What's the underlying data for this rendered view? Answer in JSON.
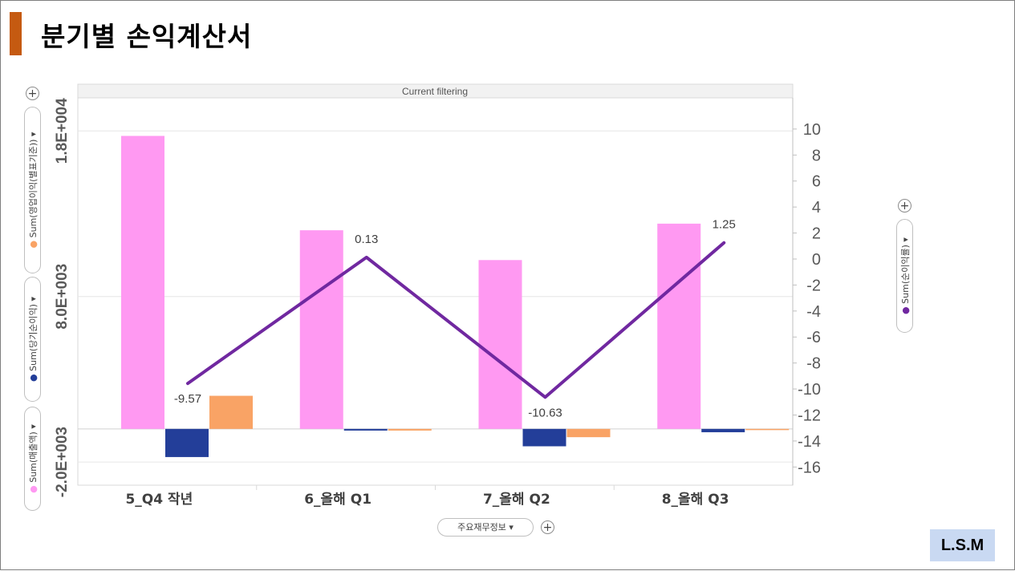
{
  "page": {
    "title": "분기별 손익계산서",
    "logo_text": "L.S.M"
  },
  "controls": {
    "filter_label": "Current filtering",
    "x_axis_selector": "주요재무정보",
    "left_axis_pills": [
      "Sum(영업이익(별표기준))",
      "Sum(당기순이익)",
      "Sum(매출액)"
    ],
    "right_axis_pill": "Sum(순이익률)",
    "dropdown_glyph": "▾",
    "plus_glyph": "+"
  },
  "chart_data": {
    "type": "bar",
    "categories": [
      "5_Q4 작년",
      "6_올해 Q1",
      "7_올해 Q2",
      "8_올해 Q3"
    ],
    "series": [
      {
        "name": "Sum(매출액)",
        "axis": "left",
        "kind": "bar",
        "color": "#ff99f2",
        "values": [
          17700,
          12000,
          10200,
          12400
        ]
      },
      {
        "name": "Sum(당기순이익)",
        "axis": "left",
        "kind": "bar",
        "color": "#233e99",
        "values": [
          -1700,
          -100,
          -1050,
          -200
        ]
      },
      {
        "name": "Sum(영업이익(별표기준))",
        "axis": "left",
        "kind": "bar",
        "color": "#f9a365",
        "values": [
          2000,
          -100,
          -500,
          0
        ]
      },
      {
        "name": "Sum(순이익률)",
        "axis": "right",
        "kind": "line",
        "color": "#7028a0",
        "values": [
          -9.57,
          0.13,
          -10.63,
          1.25
        ]
      }
    ],
    "data_labels": [
      "-9.57",
      "0.13",
      "-10.63",
      "1.25"
    ],
    "left_axis": {
      "ticks": [
        "-2.0E+003",
        "8.0E+003",
        "1.8E+004"
      ],
      "tick_values": [
        -2000,
        8000,
        18000
      ],
      "range": [
        -3400,
        20000
      ]
    },
    "right_axis": {
      "ticks": [
        "10",
        "8",
        "6",
        "4",
        "2",
        "0",
        "-2",
        "-4",
        "-6",
        "-8",
        "-10",
        "-12",
        "-14",
        "-16"
      ],
      "tick_values": [
        10,
        8,
        6,
        4,
        2,
        0,
        -2,
        -4,
        -6,
        -8,
        -10,
        -12,
        -14,
        -16
      ],
      "range": [
        -17.4,
        12.4
      ]
    },
    "grid": true,
    "legend": "none"
  }
}
